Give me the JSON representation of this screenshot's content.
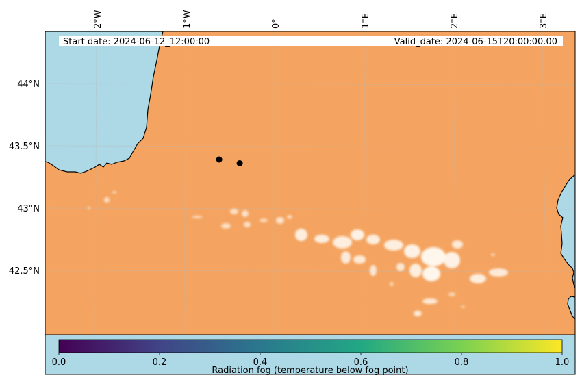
{
  "map": {
    "start_date": "Start date: 2024-06-12_12:00:00",
    "valid_date": "Valid_date: 2024-06-15T20:00:00.00",
    "land_color": "#f4a460",
    "sea_color": "#add8e6",
    "lon_ticks": [
      "2°W",
      "1°W",
      "0°",
      "1°E",
      "2°E",
      "3°E"
    ],
    "lat_ticks": [
      "44°N",
      "43.5°N",
      "43°N",
      "42.5°N"
    ],
    "points": [
      {
        "lon": -0.62,
        "lat": 43.39
      },
      {
        "lon": -0.39,
        "lat": 43.36
      }
    ],
    "fog_value_range": [
      0.9,
      1.0
    ]
  },
  "colorbar": {
    "label": "Radiation fog (temperature below fog point)",
    "ticks": [
      "0.0",
      "0.2",
      "0.4",
      "0.6",
      "0.8",
      "1.0"
    ],
    "colormap": "viridis",
    "range": [
      0.0,
      1.0
    ],
    "colors": [
      "#440154",
      "#414487",
      "#2a788e",
      "#22a884",
      "#7ad151",
      "#fde725"
    ]
  }
}
